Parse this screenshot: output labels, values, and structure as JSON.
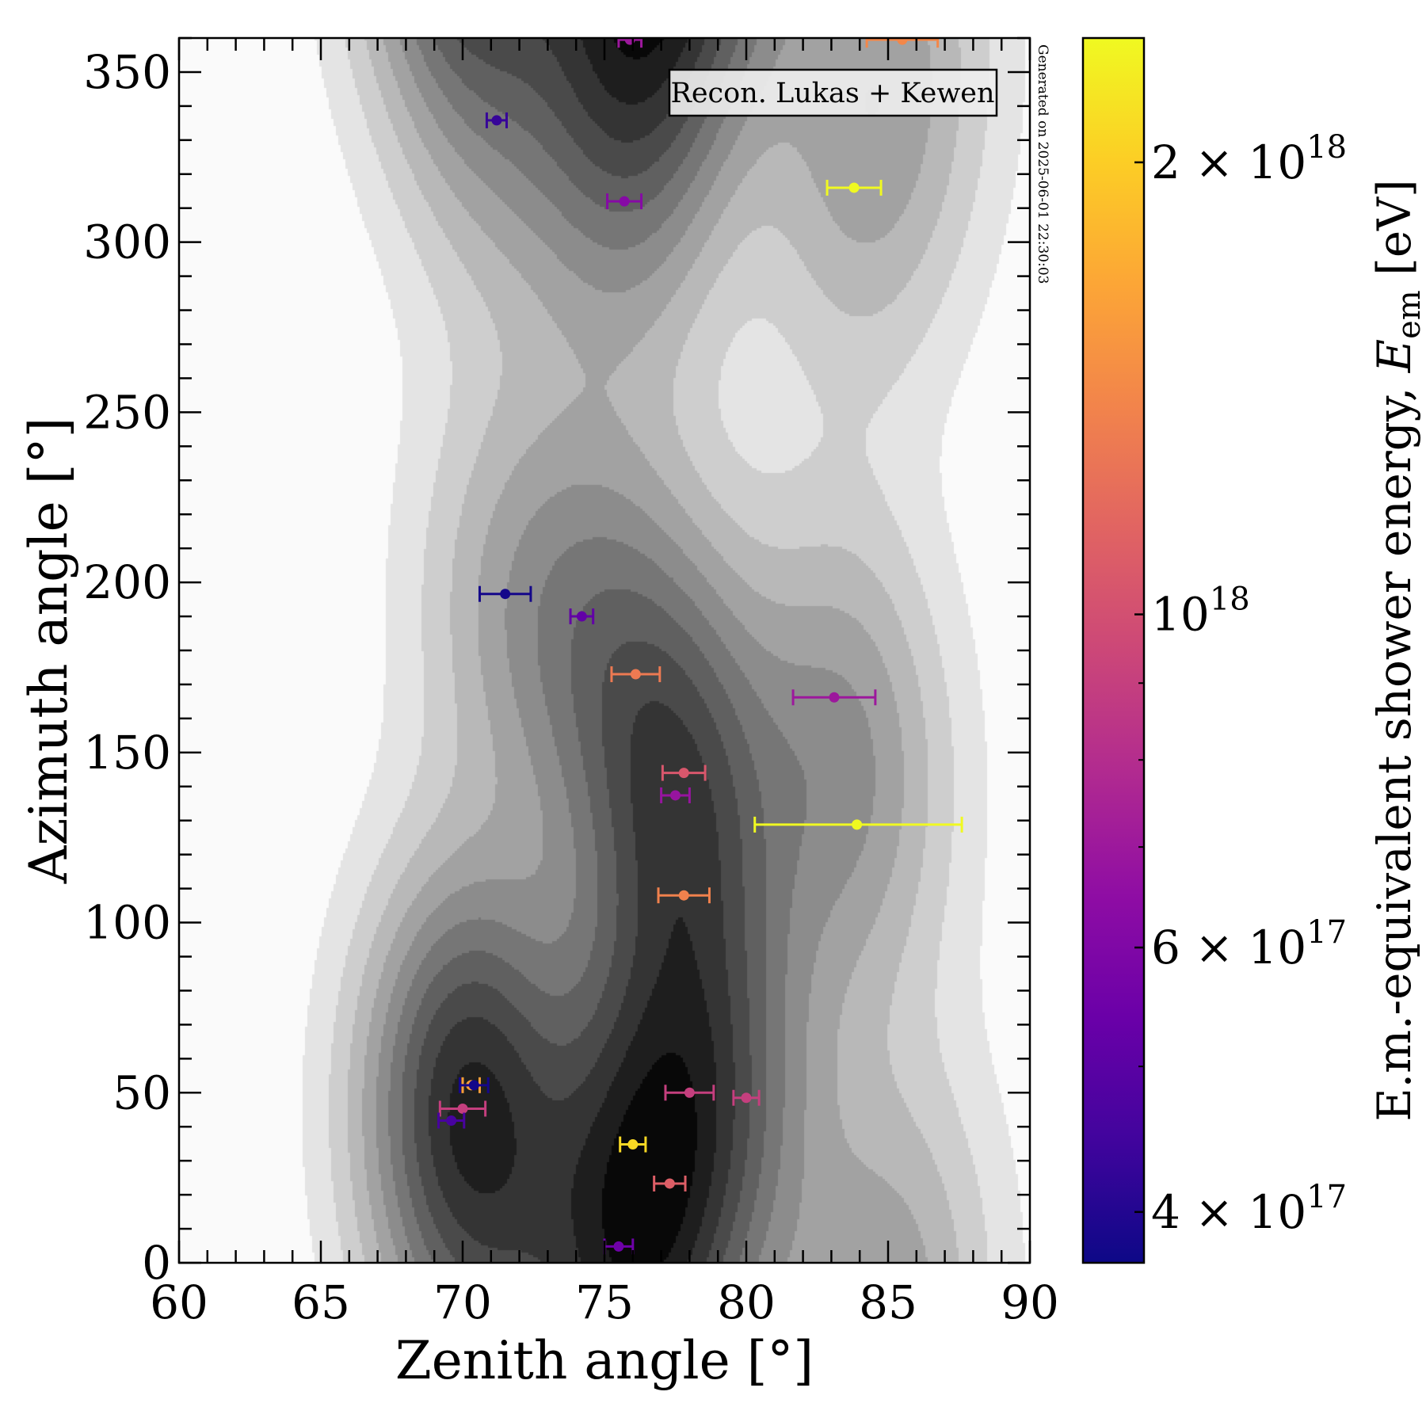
{
  "chart_data": {
    "type": "scatter",
    "title": "",
    "xlabel": "Zenith angle [°]",
    "ylabel": "Azimuth angle [°]",
    "xlim": [
      60,
      90
    ],
    "ylim": [
      0,
      360
    ],
    "x_major_ticks": [
      60,
      65,
      70,
      75,
      80,
      85,
      90
    ],
    "x_tick_labels": [
      "60",
      "65",
      "70",
      "75",
      "80",
      "85",
      "90"
    ],
    "x_minor_step": 1,
    "y_major_ticks": [
      0,
      50,
      100,
      150,
      200,
      250,
      300,
      350
    ],
    "y_tick_labels": [
      "0",
      "50",
      "100",
      "150",
      "200",
      "250",
      "300",
      "350"
    ],
    "y_minor_step": 10,
    "grid": false,
    "annotation_box": "Recon. Lukas + Kewen",
    "annotation_box_placement": "top-right",
    "side_note": "Generated on 2025-06-01 22:30:03",
    "background": {
      "type": "filled-contour",
      "description": "kernel density estimate of event directions",
      "colormap": "greys",
      "levels": 12
    },
    "colorbar": {
      "label_prefix": "E.m.-equivalent shower energy, ",
      "label_symbol": "E",
      "label_subscript": "em",
      "label_unit": " [eV]",
      "scale": "log",
      "colormap": "plasma",
      "range": [
        3.7e+17,
        2.42e+18
      ],
      "major_ticks": [
        {
          "value": 4e+17,
          "mantissa": "4",
          "exponent": "17"
        },
        {
          "value": 6e+17,
          "mantissa": "6",
          "exponent": "17"
        },
        {
          "value": 1e+18,
          "mantissa": "",
          "exponent": "18"
        },
        {
          "value": 2e+18,
          "mantissa": "2",
          "exponent": "18"
        }
      ],
      "minor_ticks": [
        5e+17,
        7e+17,
        8e+17,
        9e+17
      ]
    },
    "series": [
      {
        "name": "events",
        "marker": "circle-with-xerror",
        "points": [
          {
            "zenith": 71.2,
            "azimuth": 335.8,
            "xerr": 0.35,
            "energy": 4.3e+17
          },
          {
            "zenith": 75.7,
            "azimuth": 312.0,
            "xerr": 0.6,
            "energy": 6.2e+17
          },
          {
            "zenith": 75.9,
            "azimuth": 359.5,
            "xerr": 0.4,
            "energy": 7e+17
          },
          {
            "zenith": 85.5,
            "azimuth": 359.5,
            "xerr": 1.25,
            "energy": 1.4e+18
          },
          {
            "zenith": 83.8,
            "azimuth": 316.0,
            "xerr": 0.95,
            "energy": 2.42e+18
          },
          {
            "zenith": 71.5,
            "azimuth": 196.6,
            "xerr": 0.9,
            "energy": 3.8e+17
          },
          {
            "zenith": 74.2,
            "azimuth": 190.0,
            "xerr": 0.4,
            "energy": 5.2e+17
          },
          {
            "zenith": 76.1,
            "azimuth": 173.0,
            "xerr": 0.85,
            "energy": 1.3e+18
          },
          {
            "zenith": 83.1,
            "azimuth": 166.2,
            "xerr": 1.45,
            "energy": 7e+17
          },
          {
            "zenith": 77.8,
            "azimuth": 144.0,
            "xerr": 0.75,
            "energy": 1.05e+18
          },
          {
            "zenith": 77.5,
            "azimuth": 137.4,
            "xerr": 0.5,
            "energy": 6.8e+17
          },
          {
            "zenith": 83.9,
            "azimuth": 128.8,
            "xerr_minus": 3.6,
            "xerr_plus": 3.7,
            "energy": 2.42e+18
          },
          {
            "zenith": 77.8,
            "azimuth": 108.0,
            "xerr": 0.9,
            "energy": 1.35e+18
          },
          {
            "zenith": 70.3,
            "azimuth": 52.2,
            "xerr": 0.3,
            "energy": 1.6e+18
          },
          {
            "zenith": 70.4,
            "azimuth": 52.2,
            "xerr": 0.5,
            "energy": 3.8e+17
          },
          {
            "zenith": 70.0,
            "azimuth": 45.3,
            "xerr": 0.8,
            "energy": 9e+17
          },
          {
            "zenith": 69.6,
            "azimuth": 41.8,
            "xerr": 0.45,
            "energy": 4.6e+17
          },
          {
            "zenith": 78.0,
            "azimuth": 50.0,
            "xerr": 0.85,
            "energy": 9e+17
          },
          {
            "zenith": 80.0,
            "azimuth": 48.5,
            "xerr": 0.45,
            "energy": 9e+17
          },
          {
            "zenith": 76.0,
            "azimuth": 34.8,
            "xerr": 0.45,
            "energy": 2.1e+18
          },
          {
            "zenith": 77.3,
            "azimuth": 23.3,
            "xerr": 0.55,
            "energy": 1.1e+18
          },
          {
            "zenith": 75.5,
            "azimuth": 4.8,
            "xerr": 0.5,
            "energy": 5.5e+17
          }
        ]
      }
    ]
  }
}
